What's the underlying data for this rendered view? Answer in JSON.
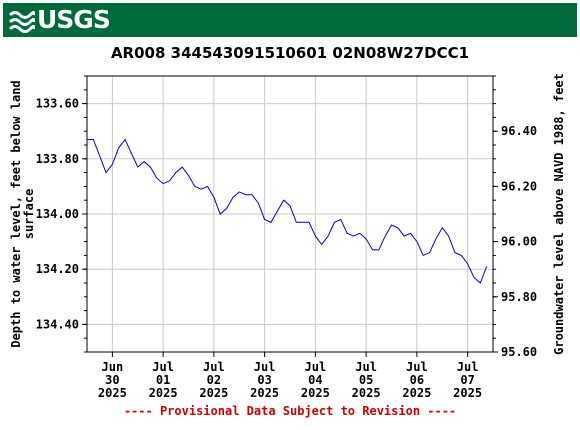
{
  "header": {
    "logo_text": "USGS",
    "brand_color": "#006a3b",
    "logo_icon": "usgs-wave-icon"
  },
  "chart_data": {
    "type": "line",
    "title": "AR008 344543091510601 02N08W27DCC1",
    "ylabel_left": "Depth to water level, feet below land surface",
    "ylabel_right": "Groundwater level above NAVD 1988, feet",
    "y_left": {
      "range": [
        134.5,
        133.5
      ],
      "inverted": true,
      "ticks": [
        "133.60",
        "133.80",
        "134.00",
        "134.20",
        "134.40"
      ],
      "tick_values": [
        133.6,
        133.8,
        134.0,
        134.2,
        134.4
      ]
    },
    "y_right": {
      "range": [
        95.6,
        96.6
      ],
      "ticks": [
        "96.40",
        "96.20",
        "96.00",
        "95.80",
        "95.60"
      ],
      "tick_values": [
        96.4,
        96.2,
        96.0,
        95.8,
        95.6
      ]
    },
    "x_axis": {
      "range": [
        "2025-06-29T12:00",
        "2025-07-07T12:00"
      ],
      "ticks": [
        {
          "date": "2025-06-30T00:00",
          "lines": [
            "Jun",
            "30",
            "2025"
          ]
        },
        {
          "date": "2025-07-01T00:00",
          "lines": [
            "Jul",
            "01",
            "2025"
          ]
        },
        {
          "date": "2025-07-02T00:00",
          "lines": [
            "Jul",
            "02",
            "2025"
          ]
        },
        {
          "date": "2025-07-03T00:00",
          "lines": [
            "Jul",
            "03",
            "2025"
          ]
        },
        {
          "date": "2025-07-04T00:00",
          "lines": [
            "Jul",
            "04",
            "2025"
          ]
        },
        {
          "date": "2025-07-05T00:00",
          "lines": [
            "Jul",
            "05",
            "2025"
          ]
        },
        {
          "date": "2025-07-06T00:00",
          "lines": [
            "Jul",
            "06",
            "2025"
          ]
        },
        {
          "date": "2025-07-07T00:00",
          "lines": [
            "Jul",
            "07",
            "2025"
          ]
        }
      ]
    },
    "grid": true,
    "line_color": "#0000cc",
    "series": [
      {
        "points": [
          [
            "2025-06-29T12:00",
            133.73
          ],
          [
            "2025-06-29T15:00",
            133.73
          ],
          [
            "2025-06-29T18:00",
            133.79
          ],
          [
            "2025-06-29T21:00",
            133.85
          ],
          [
            "2025-06-30T00:00",
            133.82
          ],
          [
            "2025-06-30T03:00",
            133.76
          ],
          [
            "2025-06-30T06:00",
            133.73
          ],
          [
            "2025-06-30T09:00",
            133.78
          ],
          [
            "2025-06-30T12:00",
            133.83
          ],
          [
            "2025-06-30T15:00",
            133.81
          ],
          [
            "2025-06-30T18:00",
            133.83
          ],
          [
            "2025-06-30T21:00",
            133.87
          ],
          [
            "2025-07-01T00:00",
            133.89
          ],
          [
            "2025-07-01T03:00",
            133.88
          ],
          [
            "2025-07-01T06:00",
            133.85
          ],
          [
            "2025-07-01T09:00",
            133.83
          ],
          [
            "2025-07-01T12:00",
            133.86
          ],
          [
            "2025-07-01T15:00",
            133.9
          ],
          [
            "2025-07-01T18:00",
            133.91
          ],
          [
            "2025-07-01T21:00",
            133.9
          ],
          [
            "2025-07-02T00:00",
            133.94
          ],
          [
            "2025-07-02T03:00",
            134.0
          ],
          [
            "2025-07-02T06:00",
            133.98
          ],
          [
            "2025-07-02T09:00",
            133.94
          ],
          [
            "2025-07-02T12:00",
            133.92
          ],
          [
            "2025-07-02T15:00",
            133.93
          ],
          [
            "2025-07-02T18:00",
            133.93
          ],
          [
            "2025-07-02T21:00",
            133.96
          ],
          [
            "2025-07-03T00:00",
            134.02
          ],
          [
            "2025-07-03T03:00",
            134.03
          ],
          [
            "2025-07-03T06:00",
            133.99
          ],
          [
            "2025-07-03T09:00",
            133.95
          ],
          [
            "2025-07-03T12:00",
            133.97
          ],
          [
            "2025-07-03T15:00",
            134.03
          ],
          [
            "2025-07-03T18:00",
            134.03
          ],
          [
            "2025-07-03T21:00",
            134.03
          ],
          [
            "2025-07-04T00:00",
            134.08
          ],
          [
            "2025-07-04T03:00",
            134.11
          ],
          [
            "2025-07-04T06:00",
            134.08
          ],
          [
            "2025-07-04T09:00",
            134.03
          ],
          [
            "2025-07-04T12:00",
            134.02
          ],
          [
            "2025-07-04T15:00",
            134.07
          ],
          [
            "2025-07-04T18:00",
            134.08
          ],
          [
            "2025-07-04T21:00",
            134.07
          ],
          [
            "2025-07-05T00:00",
            134.09
          ],
          [
            "2025-07-05T03:00",
            134.13
          ],
          [
            "2025-07-05T06:00",
            134.13
          ],
          [
            "2025-07-05T09:00",
            134.08
          ],
          [
            "2025-07-05T12:00",
            134.04
          ],
          [
            "2025-07-05T15:00",
            134.05
          ],
          [
            "2025-07-05T18:00",
            134.08
          ],
          [
            "2025-07-05T21:00",
            134.07
          ],
          [
            "2025-07-06T00:00",
            134.1
          ],
          [
            "2025-07-06T03:00",
            134.15
          ],
          [
            "2025-07-06T06:00",
            134.14
          ],
          [
            "2025-07-06T09:00",
            134.09
          ],
          [
            "2025-07-06T12:00",
            134.05
          ],
          [
            "2025-07-06T15:00",
            134.08
          ],
          [
            "2025-07-06T18:00",
            134.14
          ],
          [
            "2025-07-06T21:00",
            134.15
          ],
          [
            "2025-07-07T00:00",
            134.18
          ],
          [
            "2025-07-07T03:00",
            134.23
          ],
          [
            "2025-07-07T06:00",
            134.25
          ],
          [
            "2025-07-07T09:00",
            134.19
          ]
        ]
      }
    ],
    "annotation": "---- Provisional Data Subject to Revision ----",
    "annotation_color": "#cc0000"
  }
}
